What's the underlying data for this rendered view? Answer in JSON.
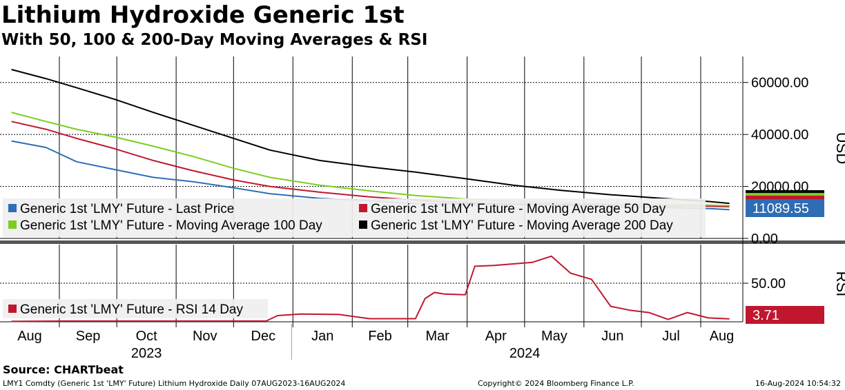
{
  "header": {
    "title": "Lithium Hydroxide Generic 1st",
    "subtitle": "With 50, 100 & 200-Day Moving Averages & RSI"
  },
  "footer": {
    "source": "Source: CHARTbeat",
    "description": "LMY1 Comdty (Generic 1st 'LMY' Future) Lithium Hydroxide  Daily 07AUG2023-16AUG2024",
    "copyright": "Copyright© 2024 Bloomberg Finance L.P.",
    "timestamp": "16-Aug-2024 10:54:32"
  },
  "colors": {
    "last_price": "#2e6db4",
    "ma50": "#c0172e",
    "ma100": "#7ccd1f",
    "ma200": "#000000",
    "rsi": "#c0172e"
  },
  "chart_data": [
    {
      "type": "line",
      "panel": "price",
      "ylabel": "USD",
      "ylim": [
        0,
        70000
      ],
      "yticks": [
        "60000.00",
        "40000.00",
        "20000.00",
        "0.00"
      ],
      "grid": true,
      "legend_position": "bottom-left",
      "x_months": [
        "Aug",
        "Sep",
        "Oct",
        "Nov",
        "Dec",
        "Jan",
        "Feb",
        "Mar",
        "Apr",
        "May",
        "Jun",
        "Jul",
        "Aug"
      ],
      "x_years": [
        "2023",
        "2024"
      ],
      "x": [
        "2023-08-07",
        "2023-08-25",
        "2023-09-10",
        "2023-09-30",
        "2023-10-20",
        "2023-11-10",
        "2023-12-01",
        "2023-12-20",
        "2024-01-15",
        "2024-02-10",
        "2024-03-05",
        "2024-03-31",
        "2024-04-25",
        "2024-05-20",
        "2024-06-15",
        "2024-07-10",
        "2024-08-05",
        "2024-08-16"
      ],
      "series": [
        {
          "name": "Generic 1st 'LMY' Future - Last Price",
          "color_key": "last_price",
          "values": [
            37500,
            35000,
            29500,
            26500,
            23500,
            21800,
            19500,
            17200,
            15400,
            14500,
            13400,
            13200,
            13100,
            12800,
            12200,
            11900,
            11500,
            11089.55
          ]
        },
        {
          "name": "Generic 1st 'LMY' Future - Moving Average 50 Day",
          "color_key": "ma50",
          "values": [
            45000,
            42000,
            38500,
            34500,
            30000,
            26000,
            22500,
            20000,
            17800,
            16000,
            14800,
            13700,
            13200,
            13000,
            12900,
            12700,
            12400,
            12200
          ]
        },
        {
          "name": "Generic 1st 'LMY' Future - Moving Average 100 Day",
          "color_key": "ma100",
          "values": [
            48500,
            45000,
            42000,
            39000,
            35500,
            31500,
            27000,
            23500,
            20500,
            18300,
            16500,
            15200,
            14200,
            13600,
            13200,
            13000,
            12800,
            12600
          ]
        },
        {
          "name": "Generic 1st 'LMY' Future - Moving Average 200 Day",
          "color_key": "ma200",
          "values": [
            65000,
            61500,
            58000,
            53500,
            48500,
            43500,
            38500,
            34000,
            30000,
            27500,
            25500,
            23000,
            20500,
            18500,
            16800,
            15500,
            14200,
            13500
          ]
        }
      ],
      "last_value_label": "11089.55"
    },
    {
      "type": "line",
      "panel": "rsi",
      "ylabel": "RSI",
      "ylim": [
        0,
        100
      ],
      "yticks": [
        "50.00"
      ],
      "legend_position": "bottom-left",
      "x": [
        "2023-08-07",
        "2023-09-05",
        "2023-10-15",
        "2023-11-20",
        "2023-12-18",
        "2023-12-24",
        "2024-01-05",
        "2024-01-25",
        "2024-02-10",
        "2024-03-05",
        "2024-03-10",
        "2024-03-15",
        "2024-03-20",
        "2024-03-31",
        "2024-04-05",
        "2024-04-15",
        "2024-04-25",
        "2024-05-05",
        "2024-05-15",
        "2024-05-25",
        "2024-06-05",
        "2024-06-15",
        "2024-06-25",
        "2024-07-05",
        "2024-07-15",
        "2024-07-25",
        "2024-08-05",
        "2024-08-16"
      ],
      "series": [
        {
          "name": "Generic 1st 'LMY' Future - RSI 14 Day",
          "color_key": "rsi",
          "values": [
            0.5,
            1.0,
            1.0,
            1.0,
            1.0,
            8.0,
            10.0,
            9.5,
            4.0,
            4.0,
            30.0,
            38.0,
            36.0,
            35.0,
            72.0,
            73.0,
            75.0,
            77.0,
            85.0,
            63.0,
            55.0,
            20.0,
            15.0,
            12.0,
            3.0,
            12.0,
            5.0,
            3.71
          ]
        }
      ],
      "last_value_label": "3.71"
    }
  ]
}
